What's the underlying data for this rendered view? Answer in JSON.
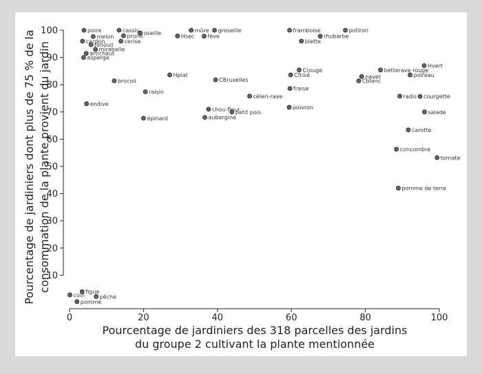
{
  "chart_data": {
    "type": "scatter",
    "title": "",
    "xlabel": [
      "Pourcentage de jardiniers des 318 parcelles des jardins",
      "du groupe 2 cultivant la plante mentionnée"
    ],
    "ylabel": [
      "Pourcentage de jardiniers dont plus de 75 % de la",
      "consommation de la plante provient du jardin"
    ],
    "xlim": [
      0,
      100
    ],
    "ylim": [
      0,
      100
    ],
    "xticks": [
      0,
      20,
      40,
      60,
      80,
      100
    ],
    "yticks": [
      10,
      20,
      30,
      40,
      50,
      60,
      70,
      80,
      90,
      100
    ],
    "grid": false,
    "marker_color": "#666666",
    "points": [
      {
        "label": "poire",
        "x": 3.9,
        "y": 100
      },
      {
        "label": "cassis",
        "x": 13.4,
        "y": 100
      },
      {
        "label": "oseille",
        "x": 19.1,
        "y": 99
      },
      {
        "label": "mûre",
        "x": 32.9,
        "y": 100
      },
      {
        "label": "groseille",
        "x": 39.2,
        "y": 100
      },
      {
        "label": "framboise",
        "x": 59.5,
        "y": 100
      },
      {
        "label": "potiron",
        "x": 74.6,
        "y": 100
      },
      {
        "label": "melon",
        "x": 6.4,
        "y": 97.7
      },
      {
        "label": "prune",
        "x": 14.6,
        "y": 98
      },
      {
        "label": "Hsec",
        "x": 29.2,
        "y": 97.9
      },
      {
        "label": "fève",
        "x": 36.4,
        "y": 97.8
      },
      {
        "label": "rhubarbe",
        "x": 67.8,
        "y": 97.8
      },
      {
        "label": "cardon",
        "x": 3.5,
        "y": 96
      },
      {
        "label": "cerise",
        "x": 13.9,
        "y": 96
      },
      {
        "label": "blette",
        "x": 62.7,
        "y": 96
      },
      {
        "label": "fenouil",
        "x": 5.8,
        "y": 94.7
      },
      {
        "label": "mirabelle",
        "x": 7,
        "y": 93
      },
      {
        "label": "artichaut",
        "x": 4.5,
        "y": 91.5
      },
      {
        "label": "asperge",
        "x": 3.8,
        "y": 90
      },
      {
        "label": "Hvert",
        "x": 95.9,
        "y": 87
      },
      {
        "label": "Crouge",
        "x": 62.1,
        "y": 85.4
      },
      {
        "label": "betterave rouge",
        "x": 84.1,
        "y": 85.4
      },
      {
        "label": "Hplat",
        "x": 27.1,
        "y": 83.6
      },
      {
        "label": "Cfrisé",
        "x": 59.8,
        "y": 83.6
      },
      {
        "label": "poireau",
        "x": 92.1,
        "y": 83.6
      },
      {
        "label": "navet",
        "x": 79,
        "y": 83
      },
      {
        "label": "brocoli",
        "x": 12.1,
        "y": 81.4
      },
      {
        "label": "CBruxelles",
        "x": 39.5,
        "y": 81.8
      },
      {
        "label": "Cblanc",
        "x": 78.2,
        "y": 81.4
      },
      {
        "label": "fraise",
        "x": 59.6,
        "y": 78.6
      },
      {
        "label": "raisin",
        "x": 20.5,
        "y": 77.4
      },
      {
        "label": "céleri-rave",
        "x": 48.7,
        "y": 75.8
      },
      {
        "label": "radis",
        "x": 89.3,
        "y": 75.8
      },
      {
        "label": "courgette",
        "x": 94.8,
        "y": 75.7
      },
      {
        "label": "endive",
        "x": 4.6,
        "y": 73
      },
      {
        "label": "chou-fleur",
        "x": 37.6,
        "y": 71
      },
      {
        "label": "poivron",
        "x": 59.4,
        "y": 71.7
      },
      {
        "label": "petit pois",
        "x": 43.9,
        "y": 70
      },
      {
        "label": "salade",
        "x": 96,
        "y": 70
      },
      {
        "label": "épinard",
        "x": 20,
        "y": 67.7
      },
      {
        "label": "aubergine",
        "x": 36.6,
        "y": 68
      },
      {
        "label": "carotte",
        "x": 91.6,
        "y": 63.4
      },
      {
        "label": "concombre",
        "x": 88.4,
        "y": 56.3
      },
      {
        "label": "tomate",
        "x": 99.4,
        "y": 53.2
      },
      {
        "label": "pomme de terre",
        "x": 88.9,
        "y": 42
      },
      {
        "label": "figue",
        "x": 3.4,
        "y": 4
      },
      {
        "label": "coin",
        "x": 0.1,
        "y": 2.8
      },
      {
        "label": "pêche",
        "x": 7.2,
        "y": 2.2
      },
      {
        "label": "pomme",
        "x": 2,
        "y": 0.3
      }
    ]
  }
}
